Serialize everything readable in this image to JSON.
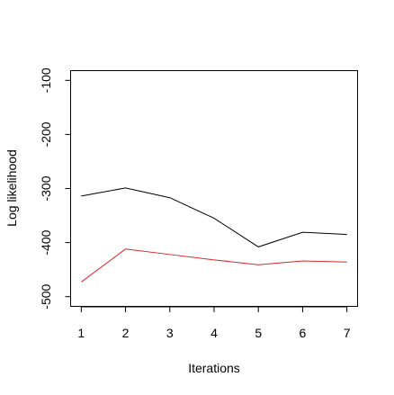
{
  "chart_data": {
    "type": "line",
    "title": "",
    "xlabel": "Iterations",
    "ylabel": "Log likelihood",
    "x": [
      1,
      2,
      3,
      4,
      5,
      6,
      7
    ],
    "xlim": [
      0.76,
      7.24
    ],
    "ylim": [
      -518,
      -82
    ],
    "xticks": [
      1,
      2,
      3,
      4,
      5,
      6,
      7
    ],
    "yticks": [
      -100,
      -200,
      -300,
      -400,
      -500
    ],
    "grid": false,
    "legend": "none",
    "series": [
      {
        "color": "#000000",
        "values": [
          -314,
          -299,
          -317,
          -355,
          -408,
          -381,
          -385
        ]
      },
      {
        "color": "#d62728",
        "values": [
          -473,
          -412,
          -422,
          -432,
          -441,
          -434,
          -436
        ]
      }
    ]
  }
}
